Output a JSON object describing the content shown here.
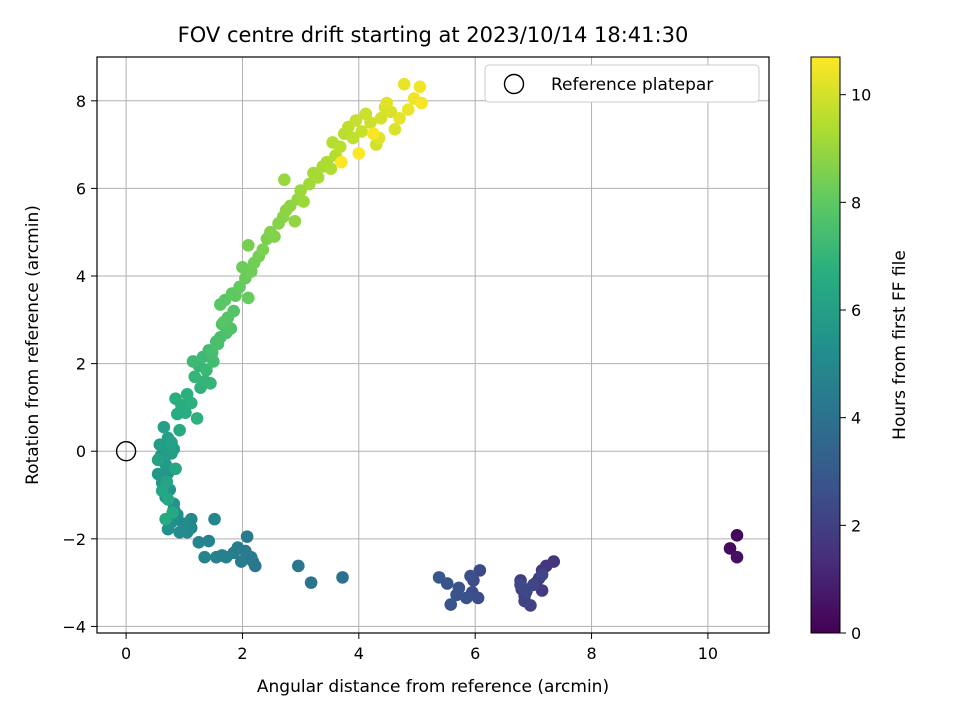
{
  "chart_data": {
    "type": "scatter",
    "title": "FOV centre drift starting at 2023/10/14 18:41:30",
    "xlabel": "Angular distance from reference (arcmin)",
    "ylabel": "Rotation from reference (arcmin)",
    "xlim": [
      -0.5,
      11.05
    ],
    "ylim": [
      -4.15,
      9.0
    ],
    "xticks": [
      0,
      2,
      4,
      6,
      8,
      10
    ],
    "yticks": [
      -4,
      -2,
      0,
      2,
      4,
      6,
      8
    ],
    "xtick_labels": [
      "0",
      "2",
      "4",
      "6",
      "8",
      "10"
    ],
    "ytick_labels": [
      "−4",
      "−2",
      "0",
      "2",
      "4",
      "6",
      "8"
    ],
    "grid": true,
    "legend": {
      "placement": "upper right",
      "entries": [
        "Reference platepar"
      ]
    },
    "reference_point": {
      "x": 0,
      "y": 0,
      "marker": "open-circle"
    },
    "colorbar": {
      "label": "Hours from first FF file",
      "colormap": "viridis",
      "range": [
        0,
        10.7
      ],
      "ticks": [
        0,
        2,
        4,
        6,
        8,
        10
      ],
      "tick_labels": [
        "0",
        "2",
        "4",
        "6",
        "8",
        "10"
      ]
    },
    "series": [
      {
        "hours": [
          0.2,
          0.3,
          0.45
        ],
        "x": [
          10.5,
          10.38,
          10.5
        ],
        "y": [
          -1.92,
          -2.22,
          -2.42
        ]
      },
      {
        "hours": [
          1.6,
          1.65,
          1.7,
          1.75,
          1.8,
          1.85,
          1.9,
          1.95,
          2.0,
          2.05,
          2.1,
          2.15,
          2.2,
          2.25,
          2.3,
          2.35
        ],
        "x": [
          7.35,
          7.22,
          7.15,
          7.1,
          7.15,
          7.05,
          6.78,
          6.8,
          6.85,
          6.95,
          6.85,
          6.8,
          7.0,
          7.15,
          6.88,
          6.78
        ],
        "y": [
          -2.52,
          -2.62,
          -2.72,
          -2.9,
          -3.18,
          -3.0,
          -2.95,
          -3.15,
          -3.3,
          -3.52,
          -3.42,
          -3.1,
          -3.05,
          -2.82,
          -3.2,
          -3.05
        ]
      },
      {
        "hours": [
          2.4,
          2.45,
          2.5,
          2.55,
          2.6,
          2.65,
          2.7,
          2.75,
          2.8,
          2.85,
          2.9
        ],
        "x": [
          6.08,
          5.97,
          6.05,
          5.95,
          5.92,
          5.85,
          5.72,
          5.68,
          5.58,
          5.52,
          5.38
        ],
        "y": [
          -2.72,
          -2.95,
          -3.35,
          -3.22,
          -2.85,
          -3.35,
          -3.12,
          -3.28,
          -3.5,
          -3.02,
          -2.88
        ]
      },
      {
        "hours": [
          4.0,
          4.05,
          4.15,
          4.2,
          4.25,
          4.3,
          4.35,
          4.4,
          4.45,
          4.5,
          4.55,
          4.6,
          4.65,
          4.7,
          4.75,
          4.8,
          4.85,
          4.9,
          4.95,
          5.0,
          5.05,
          5.1,
          5.15,
          5.2,
          5.25
        ],
        "x": [
          3.72,
          3.18,
          2.96,
          2.22,
          2.18,
          2.15,
          2.08,
          2.05,
          1.98,
          1.92,
          1.85,
          1.72,
          1.65,
          1.55,
          1.42,
          1.35,
          1.25,
          1.52,
          1.12,
          1.05,
          1.12,
          0.98,
          0.92,
          0.88,
          0.82
        ],
        "y": [
          -2.88,
          -3.0,
          -2.62,
          -2.62,
          -2.52,
          -2.42,
          -1.95,
          -2.28,
          -2.52,
          -2.2,
          -2.32,
          -2.42,
          -2.38,
          -2.42,
          -2.05,
          -2.42,
          -2.08,
          -1.55,
          -1.75,
          -1.85,
          -1.55,
          -1.65,
          -1.85,
          -1.45,
          -1.32
        ]
      },
      {
        "hours": [
          5.3,
          5.35,
          5.4,
          5.45,
          5.5,
          5.55,
          5.6,
          5.65,
          5.7,
          5.75,
          5.8,
          5.85,
          5.9,
          5.95,
          6.0,
          6.05,
          6.1,
          6.15,
          6.2,
          6.25,
          6.3,
          6.35,
          6.4,
          6.45
        ],
        "x": [
          0.78,
          0.72,
          0.82,
          0.68,
          0.75,
          0.62,
          0.72,
          0.55,
          0.68,
          0.6,
          0.78,
          0.65,
          0.58,
          0.72,
          0.82,
          0.65,
          0.55,
          0.78,
          0.7,
          0.62,
          0.85,
          0.72,
          0.8,
          0.68
        ],
        "y": [
          -1.62,
          -1.78,
          -1.2,
          -1.05,
          -0.88,
          -0.72,
          -0.5,
          -0.52,
          -0.3,
          -0.1,
          -0.05,
          0.12,
          0.15,
          0.3,
          0.05,
          0.55,
          -0.2,
          0.2,
          -0.7,
          -0.9,
          -0.4,
          -1.1,
          -1.4,
          -1.55
        ]
      },
      {
        "hours": [
          6.5,
          6.55,
          6.6,
          6.65,
          6.7,
          6.75,
          6.8,
          6.85,
          6.9,
          6.95,
          7.0,
          7.05,
          7.1,
          7.15,
          7.2,
          7.25,
          7.3,
          7.35,
          7.4,
          7.45,
          7.5,
          7.55,
          7.6,
          7.65,
          7.7,
          7.75,
          7.8,
          7.85
        ],
        "x": [
          0.92,
          0.88,
          1.02,
          0.95,
          0.85,
          1.05,
          1.12,
          1.22,
          1.28,
          1.35,
          1.45,
          1.18,
          1.25,
          1.38,
          1.15,
          1.32,
          1.42,
          1.5,
          1.55,
          1.48,
          1.62,
          1.58,
          1.72,
          1.65,
          1.8,
          1.75,
          1.85,
          1.68
        ],
        "y": [
          0.48,
          0.85,
          0.88,
          1.05,
          1.2,
          1.3,
          1.1,
          0.75,
          1.45,
          1.6,
          1.55,
          1.7,
          1.95,
          1.85,
          2.05,
          2.15,
          2.3,
          2.05,
          2.5,
          2.25,
          2.6,
          2.45,
          2.7,
          2.9,
          2.8,
          3.05,
          3.2,
          2.95
        ]
      },
      {
        "hours": [
          7.9,
          7.95,
          8.0,
          8.05,
          8.1,
          8.15,
          8.2,
          8.25,
          8.3,
          8.35,
          8.4,
          8.45,
          8.5,
          8.55,
          8.6,
          8.65,
          8.7,
          8.75,
          8.8,
          8.85,
          8.9,
          8.95,
          9.0,
          9.05,
          9.1,
          9.15,
          9.2,
          9.25,
          9.3,
          9.35,
          9.4,
          9.45
        ],
        "x": [
          1.62,
          1.7,
          1.82,
          1.88,
          1.95,
          2.1,
          2.05,
          2.0,
          2.15,
          2.2,
          2.28,
          2.1,
          2.35,
          2.42,
          2.48,
          2.55,
          2.62,
          2.7,
          2.75,
          2.82,
          2.9,
          2.95,
          2.72,
          3.0,
          3.05,
          3.15,
          3.22,
          3.3,
          3.38,
          3.45,
          3.52,
          3.6
        ],
        "y": [
          3.35,
          3.45,
          3.6,
          3.55,
          3.75,
          3.5,
          3.95,
          4.2,
          4.1,
          4.3,
          4.45,
          4.7,
          4.6,
          4.85,
          5.0,
          4.9,
          5.2,
          5.35,
          5.5,
          5.6,
          5.25,
          5.75,
          6.2,
          5.95,
          5.7,
          6.1,
          6.35,
          6.25,
          6.5,
          6.6,
          6.45,
          6.75
        ]
      },
      {
        "hours": [
          9.5,
          9.55,
          9.6,
          9.65,
          9.7,
          9.75,
          9.8,
          9.85,
          9.9,
          9.95,
          10.0,
          10.05,
          10.1,
          10.15,
          10.2,
          10.25,
          10.3,
          10.35,
          10.4,
          10.45,
          10.5,
          10.55,
          10.6,
          10.65,
          10.7
        ],
        "x": [
          3.55,
          3.68,
          3.75,
          3.82,
          3.9,
          3.95,
          4.05,
          4.12,
          4.2,
          4.3,
          4.38,
          4.45,
          4.55,
          4.62,
          4.35,
          4.48,
          4.7,
          4.78,
          4.85,
          4.95,
          5.05,
          5.08,
          4.25,
          4.0,
          3.7
        ],
        "y": [
          7.05,
          6.95,
          7.25,
          7.4,
          7.15,
          7.55,
          7.3,
          7.7,
          7.5,
          7.0,
          7.6,
          7.85,
          7.75,
          7.35,
          7.15,
          7.95,
          7.6,
          8.38,
          7.8,
          8.05,
          8.32,
          7.95,
          7.25,
          6.8,
          6.6
        ]
      }
    ]
  }
}
